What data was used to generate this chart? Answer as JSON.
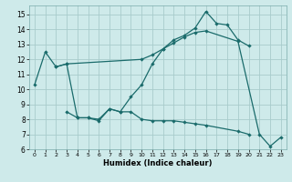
{
  "xlabel": "Humidex (Indice chaleur)",
  "background_color": "#ceeaea",
  "grid_color": "#a8cccc",
  "line_color": "#1a6b6b",
  "xlim": [
    -0.5,
    23.5
  ],
  "ylim": [
    6,
    15.6
  ],
  "yticks": [
    6,
    7,
    8,
    9,
    10,
    11,
    12,
    13,
    14,
    15
  ],
  "xticks": [
    0,
    1,
    2,
    3,
    4,
    5,
    6,
    7,
    8,
    9,
    10,
    11,
    12,
    13,
    14,
    15,
    16,
    17,
    18,
    19,
    20,
    21,
    22,
    23
  ],
  "line1_x": [
    0,
    1,
    2,
    3,
    4,
    5,
    6,
    7,
    8,
    9,
    10,
    11,
    12,
    13,
    14,
    15,
    16,
    17,
    18,
    19,
    20
  ],
  "line1_y": [
    10.3,
    12.5,
    11.5,
    11.7,
    8.1,
    8.1,
    8.0,
    8.7,
    8.5,
    9.5,
    10.3,
    11.7,
    12.7,
    13.3,
    13.6,
    14.1,
    15.2,
    14.4,
    14.3,
    13.3,
    12.9
  ],
  "line2_x": [
    2,
    3,
    10,
    11,
    12,
    13,
    14,
    15,
    16,
    19,
    21,
    22,
    23
  ],
  "line2_y": [
    11.5,
    11.7,
    12.0,
    12.3,
    12.7,
    13.1,
    13.5,
    13.8,
    13.9,
    13.2,
    7.0,
    6.2,
    6.8
  ],
  "line3_x": [
    3,
    4,
    5,
    6,
    7,
    8,
    9,
    10,
    11,
    12,
    13,
    14,
    15,
    16,
    19,
    20
  ],
  "line3_y": [
    8.5,
    8.1,
    8.1,
    7.9,
    8.7,
    8.5,
    8.5,
    8.0,
    7.9,
    7.9,
    7.9,
    7.8,
    7.7,
    7.6,
    7.2,
    7.0
  ]
}
